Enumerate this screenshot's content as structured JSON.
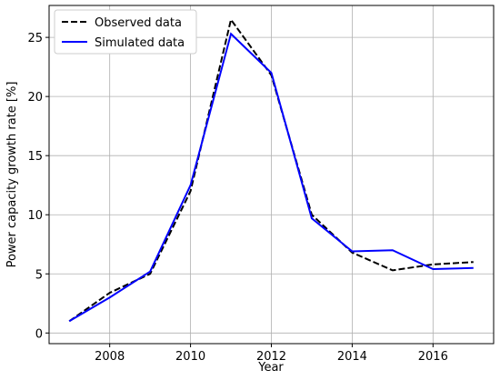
{
  "chart_data": {
    "type": "line",
    "xlabel": "Year",
    "ylabel": "Power capacity growth rate [%]",
    "x": [
      2007,
      2008,
      2009,
      2010,
      2011,
      2012,
      2013,
      2014,
      2015,
      2016,
      2017
    ],
    "series": [
      {
        "name": "Observed data",
        "color": "#000000",
        "dash": true,
        "values": [
          1.0,
          3.4,
          5.0,
          12.0,
          26.5,
          21.8,
          10.0,
          6.8,
          5.3,
          5.8,
          6.0
        ]
      },
      {
        "name": "Simulated data",
        "color": "#0000ff",
        "dash": false,
        "values": [
          1.0,
          3.0,
          5.2,
          12.5,
          25.3,
          22.0,
          9.7,
          6.9,
          7.0,
          5.4,
          5.5
        ]
      }
    ],
    "xlim": [
      2006.5,
      2017.5
    ],
    "xticks": [
      2008,
      2010,
      2012,
      2014,
      2016
    ],
    "ylim": [
      -0.9,
      27.7
    ],
    "yticks": [
      0,
      5,
      10,
      15,
      20,
      25
    ],
    "grid": true,
    "legend": "upper left"
  }
}
